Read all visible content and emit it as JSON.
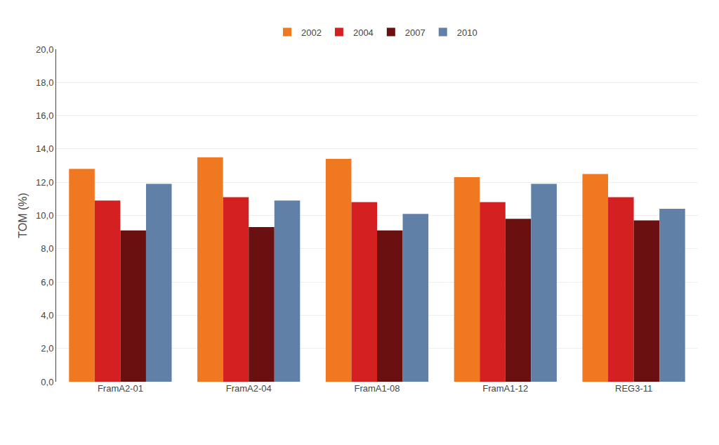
{
  "chart_data": {
    "type": "bar",
    "categories": [
      "FramA2-01",
      "FramA2-04",
      "FramA1-08",
      "FramA1-12",
      "REG3-11"
    ],
    "series": [
      {
        "name": "2002",
        "color": "#F07820",
        "values": [
          12.8,
          13.5,
          13.4,
          12.3,
          12.5
        ]
      },
      {
        "name": "2004",
        "color": "#D42020",
        "values": [
          10.9,
          11.1,
          10.8,
          10.8,
          11.1
        ]
      },
      {
        "name": "2007",
        "color": "#6B1010",
        "values": [
          9.1,
          9.3,
          9.1,
          9.8,
          9.7
        ]
      },
      {
        "name": "2010",
        "color": "#6080A8",
        "values": [
          11.9,
          10.9,
          10.1,
          11.9,
          10.4
        ]
      }
    ],
    "ylabel": "TOM (%)",
    "ylim": [
      0,
      20
    ],
    "yticks": [
      {
        "value": 0,
        "label": "0,0"
      },
      {
        "value": 2,
        "label": "2,0"
      },
      {
        "value": 4,
        "label": "4,0"
      },
      {
        "value": 6,
        "label": "6,0"
      },
      {
        "value": 8,
        "label": "8,0"
      },
      {
        "value": 10,
        "label": "10,0"
      },
      {
        "value": 12,
        "label": "12,0"
      },
      {
        "value": 14,
        "label": "14,0"
      },
      {
        "value": 16,
        "label": "16,0"
      },
      {
        "value": 18,
        "label": "18,0"
      },
      {
        "value": 20,
        "label": "20,0"
      }
    ],
    "grid": true,
    "legend": "top"
  }
}
